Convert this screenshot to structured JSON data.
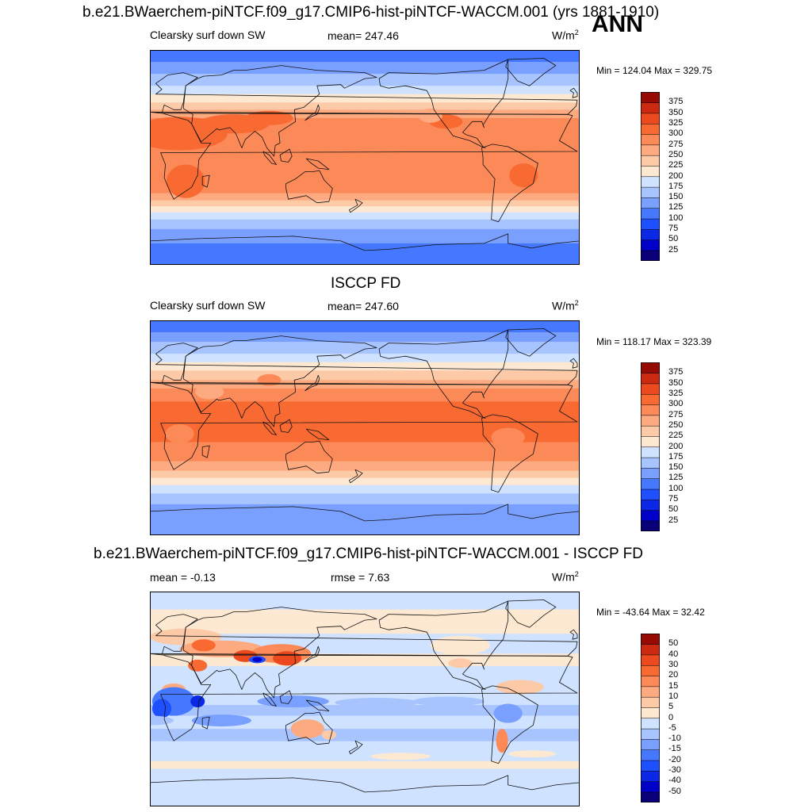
{
  "season": "ANN",
  "colors": {
    "abs_scale": [
      "#0a0078",
      "#0000c8",
      "#0a28e6",
      "#1e50ff",
      "#4678ff",
      "#7aa0ff",
      "#a8c4ff",
      "#cfe2ff",
      "#fde8d2",
      "#fdcaa8",
      "#fdaa80",
      "#fc8a58",
      "#f86a32",
      "#ec4a1e",
      "#cc2a10",
      "#960a04"
    ],
    "diff_scale": [
      "#0a0078",
      "#0000c8",
      "#0a28e6",
      "#1e50ff",
      "#4678ff",
      "#7aa0ff",
      "#a8c4ff",
      "#cfe2ff",
      "#fde8d2",
      "#fdcaa8",
      "#fdaa80",
      "#fc8a58",
      "#f86a32",
      "#ec4a1e",
      "#cc2a10",
      "#960a04"
    ]
  },
  "panels": [
    {
      "title": "b.e21.BWaerchem-piNTCF.f09_g17.CMIP6-hist-piNTCF-WACCM.001 (yrs 1881-1910)",
      "left_label": "Clearsky surf down SW",
      "center_label": "mean= 247.46",
      "units": "W/m",
      "units_sup": "2",
      "minmax": "Min = 124.04 Max = 329.75",
      "colorbar_labels": [
        "375",
        "350",
        "325",
        "300",
        "275",
        "250",
        "225",
        "200",
        "175",
        "150",
        "125",
        "100",
        "75",
        "50",
        "25"
      ],
      "map_type": "model"
    },
    {
      "title": "ISCCP FD",
      "left_label": "Clearsky surf down SW",
      "center_label": "mean= 247.60",
      "units": "W/m",
      "units_sup": "2",
      "minmax": "Min = 118.17 Max = 323.39",
      "colorbar_labels": [
        "375",
        "350",
        "325",
        "300",
        "275",
        "250",
        "225",
        "200",
        "175",
        "150",
        "125",
        "100",
        "75",
        "50",
        "25"
      ],
      "map_type": "obs"
    },
    {
      "title": "b.e21.BWaerchem-piNTCF.f09_g17.CMIP6-hist-piNTCF-WACCM.001 - ISCCP FD",
      "left_label": "mean =  -0.13",
      "center_label": "rmse =   7.63",
      "units": "W/m",
      "units_sup": "2",
      "minmax": "Min = -43.64 Max =  32.42",
      "colorbar_labels": [
        "50",
        "40",
        "30",
        "20",
        "15",
        "10",
        "5",
        "0",
        "-5",
        "-10",
        "-15",
        "-20",
        "-30",
        "-40",
        "-50"
      ],
      "map_type": "diff"
    }
  ]
}
